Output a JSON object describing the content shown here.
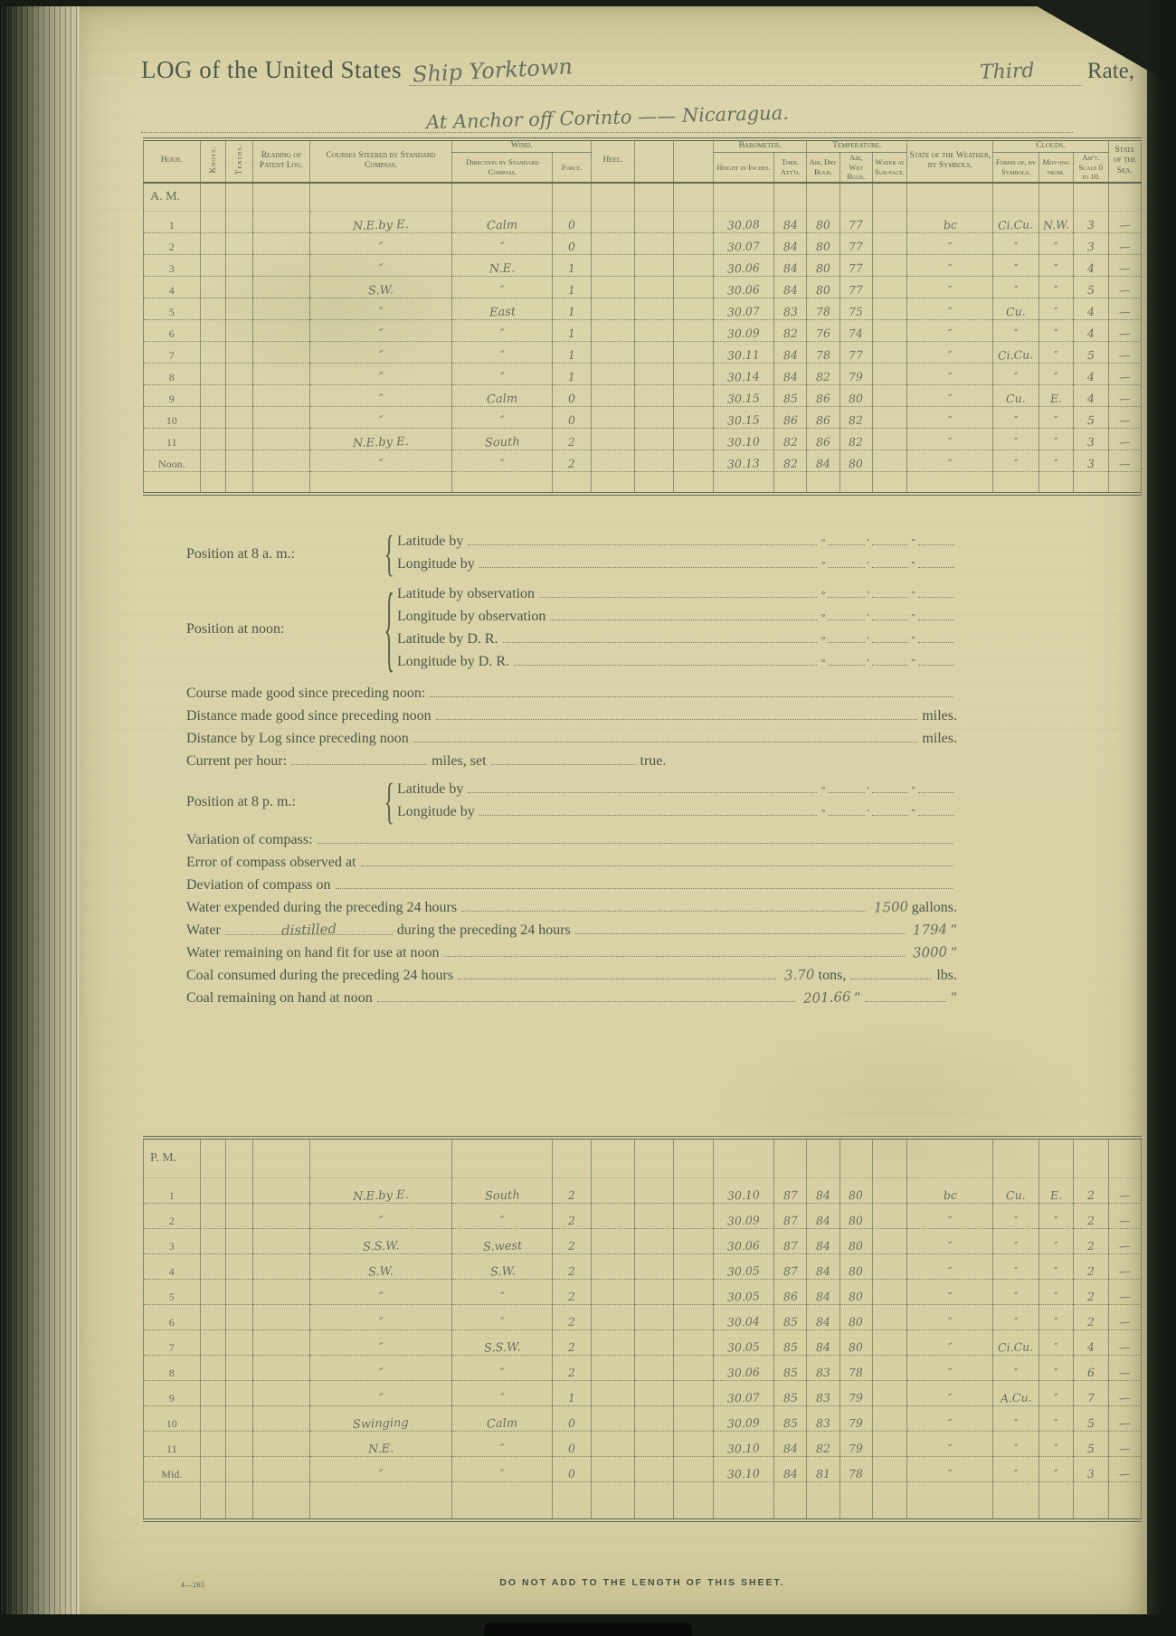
{
  "header": {
    "log_prefix": "LOG of the United States",
    "vessel": "Ship Yorktown",
    "rate_value": "Third",
    "rate_label": "Rate,",
    "location_line": "At Anchor off Corinto —— Nicaragua."
  },
  "columns": {
    "hour": "Hour.",
    "knots": "Knots.",
    "tenths": "Tenths.",
    "reading": "Reading of Patent Log.",
    "courses": "Courses Steered by Standard Compass.",
    "wind": "Wind.",
    "wind_direction": "Direction by Standard Compass.",
    "force": "Force.",
    "heel": "Heel.",
    "barometer": "Barometer.",
    "height": "Height in Inches.",
    "ther": "Ther. Att'd.",
    "temperature": "Temperature.",
    "air_dry": "Air, Dry Bulb.",
    "air_wet": "Air, Wet Bulb.",
    "water_surface": "Water at Sur-face.",
    "weather": "State of the Weather, by Symbols.",
    "clouds": "Clouds.",
    "forms": "Forms of, by Symbols.",
    "moving": "Mov-ing from.",
    "amount": "Am't. Scale 0 to 10.",
    "sea": "State of the Sea."
  },
  "am_table": {
    "label": "A. M.",
    "rows": [
      {
        "hour": "1",
        "course": "N.E.by E.",
        "wind": "Calm",
        "force": "0",
        "height": "30.08",
        "ther": "84",
        "dry": "80",
        "wet": "77",
        "weather": "bc",
        "forms": "Ci.Cu.",
        "moving": "N.W.",
        "amt": "3",
        "sea": "—"
      },
      {
        "hour": "2",
        "course": "″",
        "wind": "″",
        "force": "0",
        "height": "30.07",
        "ther": "84",
        "dry": "80",
        "wet": "77",
        "weather": "″",
        "forms": "″",
        "moving": "″",
        "amt": "3",
        "sea": "—"
      },
      {
        "hour": "3",
        "course": "″",
        "wind": "N.E.",
        "force": "1",
        "height": "30.06",
        "ther": "84",
        "dry": "80",
        "wet": "77",
        "weather": "″",
        "forms": "″",
        "moving": "″",
        "amt": "4",
        "sea": "—"
      },
      {
        "hour": "4",
        "course": "S.W.",
        "wind": "″",
        "force": "1",
        "height": "30.06",
        "ther": "84",
        "dry": "80",
        "wet": "77",
        "weather": "″",
        "forms": "″",
        "moving": "″",
        "amt": "5",
        "sea": "—"
      },
      {
        "hour": "5",
        "course": "″",
        "wind": "East",
        "force": "1",
        "height": "30.07",
        "ther": "83",
        "dry": "78",
        "wet": "75",
        "weather": "″",
        "forms": "Cu.",
        "moving": "″",
        "amt": "4",
        "sea": "—"
      },
      {
        "hour": "6",
        "course": "″",
        "wind": "″",
        "force": "1",
        "height": "30.09",
        "ther": "82",
        "dry": "76",
        "wet": "74",
        "weather": "″",
        "forms": "″",
        "moving": "″",
        "amt": "4",
        "sea": "—"
      },
      {
        "hour": "7",
        "course": "″",
        "wind": "″",
        "force": "1",
        "height": "30.11",
        "ther": "84",
        "dry": "78",
        "wet": "77",
        "weather": "″",
        "forms": "Ci.Cu.",
        "moving": "″",
        "amt": "5",
        "sea": "—"
      },
      {
        "hour": "8",
        "course": "″",
        "wind": "″",
        "force": "1",
        "height": "30.14",
        "ther": "84",
        "dry": "82",
        "wet": "79",
        "weather": "″",
        "forms": "″",
        "moving": "″",
        "amt": "4",
        "sea": "—"
      },
      {
        "hour": "9",
        "course": "″",
        "wind": "Calm",
        "force": "0",
        "height": "30.15",
        "ther": "85",
        "dry": "86",
        "wet": "80",
        "weather": "″",
        "forms": "Cu.",
        "moving": "E.",
        "amt": "4",
        "sea": "—"
      },
      {
        "hour": "10",
        "course": "″",
        "wind": "″",
        "force": "0",
        "height": "30.15",
        "ther": "86",
        "dry": "86",
        "wet": "82",
        "weather": "″",
        "forms": "″",
        "moving": "″",
        "amt": "5",
        "sea": "—"
      },
      {
        "hour": "11",
        "course": "N.E.by E.",
        "wind": "South",
        "force": "2",
        "height": "30.10",
        "ther": "82",
        "dry": "86",
        "wet": "82",
        "weather": "″",
        "forms": "″",
        "moving": "″",
        "amt": "3",
        "sea": "—"
      },
      {
        "hour": "Noon.",
        "course": "″",
        "wind": "″",
        "force": "2",
        "height": "30.13",
        "ther": "82",
        "dry": "84",
        "wet": "80",
        "weather": "″",
        "forms": "″",
        "moving": "″",
        "amt": "3",
        "sea": "—"
      }
    ]
  },
  "pm_table": {
    "label": "P. M.",
    "rows": [
      {
        "hour": "1",
        "course": "N.E.by E.",
        "wind": "South",
        "force": "2",
        "height": "30.10",
        "ther": "87",
        "dry": "84",
        "wet": "80",
        "weather": "bc",
        "forms": "Cu.",
        "moving": "E.",
        "amt": "2",
        "sea": "—"
      },
      {
        "hour": "2",
        "course": "″",
        "wind": "″",
        "force": "2",
        "height": "30.09",
        "ther": "87",
        "dry": "84",
        "wet": "80",
        "weather": "″",
        "forms": "″",
        "moving": "″",
        "amt": "2",
        "sea": "—"
      },
      {
        "hour": "3",
        "course": "S.S.W.",
        "wind": "S.west",
        "force": "2",
        "height": "30.06",
        "ther": "87",
        "dry": "84",
        "wet": "80",
        "weather": "″",
        "forms": "″",
        "moving": "″",
        "amt": "2",
        "sea": "—"
      },
      {
        "hour": "4",
        "course": "S.W.",
        "wind": "S.W.",
        "force": "2",
        "height": "30.05",
        "ther": "87",
        "dry": "84",
        "wet": "80",
        "weather": "″",
        "forms": "″",
        "moving": "″",
        "amt": "2",
        "sea": "—"
      },
      {
        "hour": "5",
        "course": "″",
        "wind": "″",
        "force": "2",
        "height": "30.05",
        "ther": "86",
        "dry": "84",
        "wet": "80",
        "weather": "″",
        "forms": "″",
        "moving": "″",
        "amt": "2",
        "sea": "—"
      },
      {
        "hour": "6",
        "course": "″",
        "wind": "″",
        "force": "2",
        "height": "30.04",
        "ther": "85",
        "dry": "84",
        "wet": "80",
        "weather": "″",
        "forms": "″",
        "moving": "″",
        "amt": "2",
        "sea": "—"
      },
      {
        "hour": "7",
        "course": "″",
        "wind": "S.S.W.",
        "force": "2",
        "height": "30.05",
        "ther": "85",
        "dry": "84",
        "wet": "80",
        "weather": "″",
        "forms": "Ci.Cu.",
        "moving": "″",
        "amt": "4",
        "sea": "—"
      },
      {
        "hour": "8",
        "course": "″",
        "wind": "″",
        "force": "2",
        "height": "30.06",
        "ther": "85",
        "dry": "83",
        "wet": "78",
        "weather": "″",
        "forms": "″",
        "moving": "″",
        "amt": "6",
        "sea": "—"
      },
      {
        "hour": "9",
        "course": "″",
        "wind": "″",
        "force": "1",
        "height": "30.07",
        "ther": "85",
        "dry": "83",
        "wet": "79",
        "weather": "″",
        "forms": "A.Cu.",
        "moving": "″",
        "amt": "7",
        "sea": "—"
      },
      {
        "hour": "10",
        "course": "Swinging",
        "wind": "Calm",
        "force": "0",
        "height": "30.09",
        "ther": "85",
        "dry": "83",
        "wet": "79",
        "weather": "″",
        "forms": "″",
        "moving": "″",
        "amt": "5",
        "sea": "—"
      },
      {
        "hour": "11",
        "course": "N.E.",
        "wind": "″",
        "force": "0",
        "height": "30.10",
        "ther": "84",
        "dry": "82",
        "wet": "79",
        "weather": "″",
        "forms": "″",
        "moving": "″",
        "amt": "5",
        "sea": "—"
      },
      {
        "hour": "Mid.",
        "course": "″",
        "wind": "″",
        "force": "0",
        "height": "30.10",
        "ther": "84",
        "dry": "81",
        "wet": "78",
        "weather": "″",
        "forms": "″",
        "moving": "″",
        "amt": "3",
        "sea": "—"
      }
    ]
  },
  "mid_section": {
    "position_8am": {
      "label": "Position at 8 a. m.:",
      "line1": "Latitude by",
      "line2": "Longitude by"
    },
    "position_noon": {
      "label": "Position at noon:",
      "line1": "Latitude by observation",
      "line2": "Longitude by observation",
      "line3": "Latitude by D. R.",
      "line4": "Longitude by D. R."
    },
    "course_made_good": "Course made good since preceding noon:",
    "distance_made_good": {
      "label": "Distance made good since preceding noon",
      "unit": "miles."
    },
    "distance_by_log": {
      "label": "Distance by Log since preceding noon",
      "unit": "miles."
    },
    "current": {
      "label": "Current per hour:",
      "unit1": "miles, set",
      "unit2": "true."
    },
    "position_8pm": {
      "label": "Position at 8 p. m.:",
      "line1": "Latitude by",
      "line2": "Longitude by"
    },
    "variation": "Variation of compass:",
    "error": "Error of compass observed at",
    "deviation": "Deviation of compass on",
    "water_expended": {
      "label": "Water expended during the preceding 24 hours",
      "value": "1500",
      "unit": "gallons."
    },
    "water_distilled": {
      "label_pre": "Water",
      "fill": "distilled",
      "label_post": "during the preceding 24 hours",
      "value": "1794",
      "unit": "″"
    },
    "water_remaining": {
      "label": "Water remaining on hand fit for use at noon",
      "value": "3000",
      "unit": "″"
    },
    "coal_consumed": {
      "label": "Coal consumed during the preceding 24 hours",
      "value": "3.70",
      "unit": "tons,",
      "unit2": "lbs."
    },
    "coal_remaining": {
      "label": "Coal remaining on hand at noon",
      "value": "201.66",
      "unit": "″",
      "unit2": "″"
    }
  },
  "marks": {
    "deg": "°",
    "min": "′",
    "sec": "″"
  },
  "footer": {
    "form_number": "4—265",
    "notice": "DO NOT ADD TO THE LENGTH OF THIS SHEET."
  }
}
